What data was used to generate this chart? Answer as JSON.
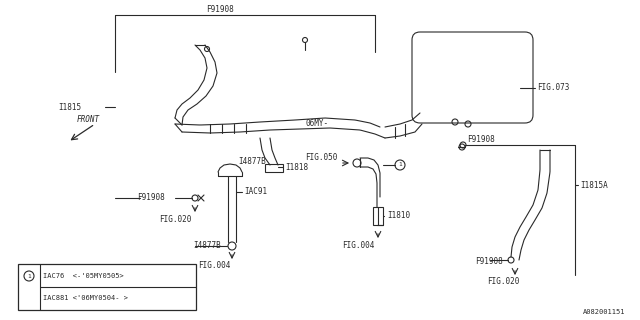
{
  "bg_color": "#ffffff",
  "line_color": "#2a2a2a",
  "labels": {
    "F91908_top": "F91908",
    "I1815": "I1815",
    "F91908_left": "F91908",
    "FIG020_left": "FIG.020",
    "I4877B_mid": "I4877B",
    "06MY": "06MY-",
    "I1818": "I1818",
    "FIG073": "FIG.073",
    "F91908_right_top": "F91908",
    "I1815A": "I1815A",
    "IAC91": "IAC91",
    "FIG050": "FIG.050",
    "I4877B_bot": "I4877B",
    "FIG004_mid": "FIG.004",
    "I1810": "I1810",
    "F91908_bot": "F91908",
    "FIG004_right": "FIG.004",
    "FIG020_right": "FIG.020",
    "FRONT": "FRONT",
    "diagram_id": "A082001151",
    "legend_1": "IAC76  <-'05MY0505>",
    "legend_2": "IAC881 <'06MY0504- >"
  }
}
